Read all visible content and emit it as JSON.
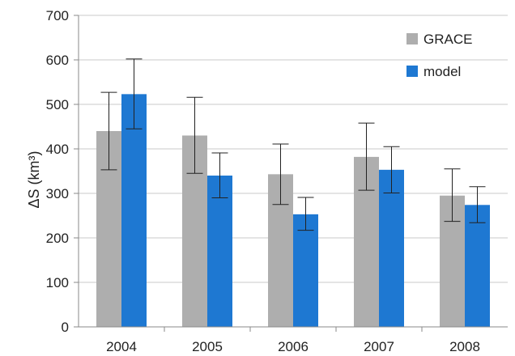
{
  "chart_data": {
    "type": "bar",
    "title": "",
    "xlabel": "",
    "ylabel": "ΔS (km³)",
    "ylim": [
      0,
      700
    ],
    "yticks": [
      0,
      100,
      200,
      300,
      400,
      500,
      600,
      700
    ],
    "categories": [
      "2004",
      "2005",
      "2006",
      "2007",
      "2008"
    ],
    "grid": true,
    "legend_position": "top-right",
    "series": [
      {
        "name": "GRACE",
        "color": "#aeaeae",
        "values": [
          440,
          430,
          343,
          382,
          295
        ],
        "error_low": [
          353,
          345,
          275,
          307,
          237
        ],
        "error_high": [
          527,
          516,
          411,
          458,
          355
        ]
      },
      {
        "name": "model",
        "color": "#1e78d2",
        "values": [
          523,
          340,
          253,
          353,
          274
        ],
        "error_low": [
          445,
          290,
          217,
          301,
          234
        ],
        "error_high": [
          602,
          391,
          291,
          405,
          315
        ]
      }
    ]
  }
}
